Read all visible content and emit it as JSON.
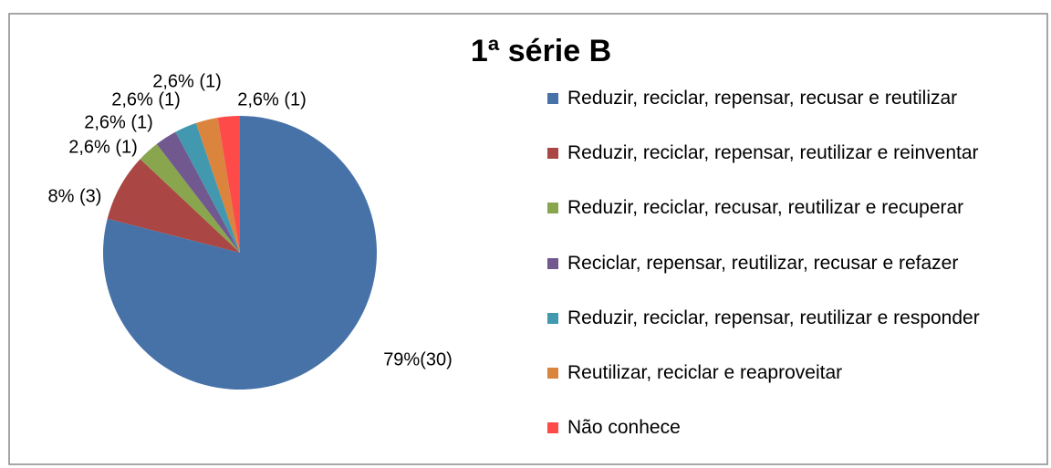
{
  "chart_data": {
    "type": "pie",
    "title": "1ª série B",
    "categories": [
      "Reduzir, reciclar, repensar, recusar e reutilizar",
      "Reduzir, reciclar, repensar, reutilizar e reinventar",
      "Reduzir, reciclar, recusar, reutilizar e recuperar",
      "Reciclar, repensar, reutilizar, recusar e refazer",
      "Reduzir, reciclar, repensar, reutilizar e responder",
      "Reutilizar, reciclar e reaproveitar",
      "Não conhece"
    ],
    "values": [
      79,
      8,
      2.6,
      2.6,
      2.6,
      2.6,
      2.6
    ],
    "value_labels": [
      "79%(30)",
      "8% (3)",
      "2,6% (1)",
      "2,6% (1)",
      "2,6% (1)",
      "2,6% (1)",
      "2,6% (1)"
    ],
    "colors": [
      "#4672a8",
      "#aa4643",
      "#89a54e",
      "#71588f",
      "#4198af",
      "#db843d",
      "#ff4a4a"
    ],
    "legend": "right"
  }
}
